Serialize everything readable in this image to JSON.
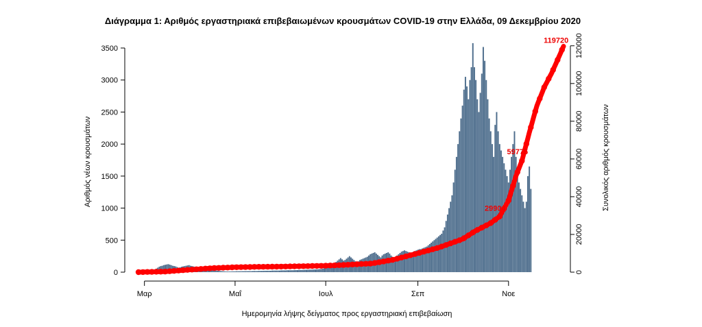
{
  "chart_data": {
    "type": "bar",
    "title": "Διάγραμμα 1: Αριθμός εργαστηριακά επιβεβαιωμένων κρουσμάτων COVID-19 στην Ελλάδα, 09 Δεκεμβρίου 2020",
    "xlabel": "Ημερομηνία λήψης δείγματος προς εργαστηριακή επιβεβαίωση",
    "ylabel": "Αριθμός νέων κρουσμάτων",
    "y2label": "Συνολικός αριθμός κρουσμάτων",
    "ylim": [
      0,
      3800
    ],
    "y2lim": [
      0,
      129000
    ],
    "yticks": [
      0,
      500,
      1000,
      1500,
      2000,
      2500,
      3000,
      3500
    ],
    "y2ticks": [
      0,
      20000,
      40000,
      60000,
      80000,
      100000,
      120000
    ],
    "x_range": [
      "2020-02-26",
      "2020-12-08"
    ],
    "x_ticks": [
      {
        "label": "Μαρ",
        "date": "2020-03-01"
      },
      {
        "label": "Μαΐ",
        "date": "2020-05-01"
      },
      {
        "label": "Ιουλ",
        "date": "2020-07-01"
      },
      {
        "label": "Σεπ",
        "date": "2020-09-01"
      },
      {
        "label": "Νοε",
        "date": "2020-11-01"
      }
    ],
    "series": [
      {
        "type": "bar",
        "axis": "left",
        "color": "#4d6d8c",
        "start_date": "2020-02-26",
        "values": [
          2,
          3,
          4,
          5,
          8,
          10,
          12,
          18,
          25,
          30,
          35,
          40,
          55,
          70,
          85,
          95,
          100,
          110,
          115,
          120,
          125,
          118,
          110,
          100,
          95,
          90,
          80,
          70,
          75,
          85,
          90,
          95,
          100,
          105,
          110,
          100,
          95,
          90,
          85,
          80,
          70,
          65,
          60,
          55,
          50,
          45,
          40,
          38,
          35,
          32,
          30,
          28,
          25,
          22,
          20,
          18,
          16,
          14,
          12,
          10,
          10,
          10,
          10,
          12,
          12,
          12,
          14,
          14,
          14,
          14,
          15,
          15,
          15,
          16,
          16,
          16,
          16,
          18,
          18,
          18,
          18,
          20,
          20,
          20,
          20,
          22,
          22,
          22,
          22,
          22,
          25,
          25,
          25,
          25,
          25,
          25,
          28,
          28,
          28,
          28,
          30,
          30,
          30,
          30,
          30,
          32,
          32,
          32,
          35,
          35,
          35,
          35,
          38,
          38,
          38,
          40,
          40,
          40,
          42,
          42,
          45,
          45,
          48,
          50,
          55,
          60,
          70,
          80,
          90,
          100,
          110,
          120,
          140,
          160,
          180,
          200,
          220,
          200,
          180,
          190,
          210,
          230,
          250,
          230,
          210,
          190,
          170,
          150,
          170,
          190,
          200,
          210,
          220,
          230,
          240,
          260,
          280,
          290,
          300,
          310,
          290,
          270,
          250,
          230,
          260,
          280,
          290,
          300,
          310,
          290,
          260,
          240,
          220,
          240,
          260,
          280,
          300,
          320,
          330,
          340,
          330,
          320,
          310,
          300,
          310,
          320,
          330,
          340,
          350,
          360,
          360,
          370,
          380,
          390,
          400,
          420,
          440,
          460,
          480,
          500,
          520,
          540,
          560,
          580,
          600,
          650,
          700,
          800,
          900,
          1000,
          1100,
          1200,
          1400,
          1600,
          1800,
          2000,
          2200,
          2400,
          2600,
          2850,
          3050,
          2900,
          2700,
          3000,
          3200,
          3576,
          3200,
          3000,
          2700,
          2500,
          2800,
          3100,
          3516,
          3300,
          3000,
          2700,
          2400,
          2200,
          2000,
          1800,
          2300,
          2500,
          2200,
          2000,
          1900,
          1800,
          1700,
          1600,
          1500,
          1400,
          1600,
          1800,
          2000,
          2200,
          1800,
          1600,
          1400,
          1300,
          1200,
          1100,
          1000,
          1100,
          1500,
          1650,
          1300
        ]
      },
      {
        "type": "line",
        "axis": "right",
        "color": "#ff0000",
        "name": "",
        "points": [
          [
            "2020-02-26",
            0
          ],
          [
            "2020-03-15",
            300
          ],
          [
            "2020-04-01",
            1300
          ],
          [
            "2020-04-15",
            2100
          ],
          [
            "2020-05-01",
            2600
          ],
          [
            "2020-05-15",
            2800
          ],
          [
            "2020-06-01",
            2950
          ],
          [
            "2020-06-15",
            3150
          ],
          [
            "2020-07-01",
            3400
          ],
          [
            "2020-07-15",
            3900
          ],
          [
            "2020-08-01",
            4600
          ],
          [
            "2020-08-15",
            6500
          ],
          [
            "2020-09-01",
            10000
          ],
          [
            "2020-09-15",
            13000
          ],
          [
            "2020-10-01",
            17500
          ],
          [
            "2020-10-10",
            22000
          ],
          [
            "2020-10-20",
            26000
          ],
          [
            "2020-10-26",
            29500
          ],
          [
            "2020-11-01",
            38000
          ],
          [
            "2020-11-06",
            51000
          ],
          [
            "2020-11-10",
            59000
          ],
          [
            "2020-11-15",
            74000
          ],
          [
            "2020-11-20",
            88000
          ],
          [
            "2020-11-25",
            98000
          ],
          [
            "2020-11-30",
            105500
          ],
          [
            "2020-12-04",
            112500
          ],
          [
            "2020-12-08",
            119720
          ]
        ]
      }
    ],
    "annotations": [
      {
        "text": "119720",
        "date": "2020-12-03",
        "value2": 121500
      },
      {
        "text": "59775",
        "date": "2020-11-07",
        "value2": 62500
      },
      {
        "text": "29904",
        "date": "2020-10-23",
        "value2": 32500
      }
    ]
  }
}
